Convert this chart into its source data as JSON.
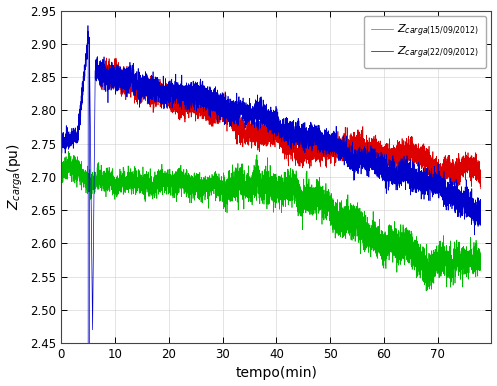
{
  "xlabel": "tempo(min)",
  "ylabel": "Z_{carga}(pu)",
  "xlim": [
    0,
    80
  ],
  "ylim": [
    2.45,
    2.95
  ],
  "xticks": [
    0,
    10,
    20,
    30,
    40,
    50,
    60,
    70
  ],
  "yticks": [
    2.45,
    2.5,
    2.55,
    2.6,
    2.65,
    2.7,
    2.75,
    2.8,
    2.85,
    2.9,
    2.95
  ],
  "legend_green_label": "Z_{carga(15/09/2012)}",
  "legend_blue_label": "Z_{carga(22/09/2012)}",
  "red_color": "#dd0000",
  "green_color": "#00bb00",
  "blue_color": "#0000cc",
  "background_color": "#ffffff",
  "grid_color": "#d0d0d0",
  "seed": 12345,
  "n_points": 7800,
  "total_time": 78.0
}
